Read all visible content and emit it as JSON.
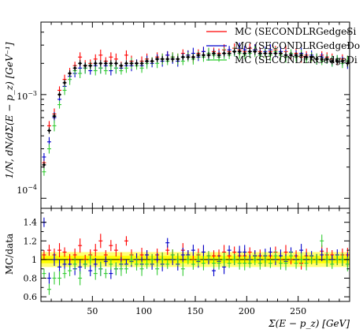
{
  "chart_data": {
    "type": "scatter",
    "main": {
      "ylabel": "1/N, dN/dΣ(E − p_z) [GeV⁻¹]",
      "y_scale": "log",
      "ylim": [
        8e-05,
        0.005
      ],
      "xlim": [
        0,
        300
      ],
      "ytick_labels": [
        {
          "value": 0.0001,
          "label": "10⁻⁴"
        },
        {
          "value": 0.001,
          "label": "10⁻³"
        }
      ],
      "legend_placement": "top-right",
      "series": [
        {
          "name": "MC (SECONDLRGedgeSi",
          "color": "#ff0000",
          "x": [
            3,
            8,
            13,
            18,
            23,
            28,
            33,
            38,
            43,
            48,
            53,
            58,
            63,
            68,
            73,
            78,
            83,
            88,
            93,
            98,
            103,
            108,
            113,
            118,
            123,
            128,
            133,
            138,
            143,
            148,
            153,
            158,
            163,
            168,
            173,
            178,
            183,
            188,
            193,
            198,
            203,
            208,
            213,
            218,
            223,
            228,
            233,
            238,
            243,
            248,
            253,
            258,
            263,
            268,
            273,
            278,
            283,
            288,
            293,
            298
          ],
          "values": [
            0.00022,
            0.0005,
            0.00065,
            0.0011,
            0.0014,
            0.0016,
            0.0019,
            0.0023,
            0.0019,
            0.002,
            0.0022,
            0.0024,
            0.0021,
            0.0023,
            0.0022,
            0.0019,
            0.0024,
            0.0021,
            0.002,
            0.0021,
            0.0022,
            0.0021,
            0.0023,
            0.0022,
            0.0024,
            0.0023,
            0.0022,
            0.0025,
            0.0024,
            0.0023,
            0.0025,
            0.0026,
            0.0025,
            0.0026,
            0.0025,
            0.0027,
            0.0026,
            0.0028,
            0.0027,
            0.0026,
            0.0028,
            0.0027,
            0.0026,
            0.0025,
            0.0026,
            0.0027,
            0.0025,
            0.0026,
            0.0024,
            0.0025,
            0.0023,
            0.0024,
            0.0023,
            0.0022,
            0.0024,
            0.0023,
            0.0022,
            0.0021,
            0.0022,
            0.0021
          ]
        },
        {
          "name": "MC (SECONDLRGedgeDo",
          "color": "#0000cc",
          "x": [
            3,
            8,
            13,
            18,
            23,
            28,
            33,
            38,
            43,
            48,
            53,
            58,
            63,
            68,
            73,
            78,
            83,
            88,
            93,
            98,
            103,
            108,
            113,
            118,
            123,
            128,
            133,
            138,
            143,
            148,
            153,
            158,
            163,
            168,
            173,
            178,
            183,
            188,
            193,
            198,
            203,
            208,
            213,
            218,
            223,
            228,
            233,
            238,
            243,
            248,
            253,
            258,
            263,
            268,
            273,
            278,
            283,
            288,
            293,
            298
          ],
          "values": [
            0.00025,
            0.00035,
            0.0006,
            0.0009,
            0.0012,
            0.0015,
            0.0016,
            0.0018,
            0.0018,
            0.0017,
            0.0019,
            0.0018,
            0.0019,
            0.0017,
            0.0018,
            0.0018,
            0.0019,
            0.0019,
            0.002,
            0.0019,
            0.0021,
            0.002,
            0.0022,
            0.0021,
            0.0024,
            0.0022,
            0.0021,
            0.0023,
            0.0024,
            0.0025,
            0.0023,
            0.0026,
            0.0024,
            0.0025,
            0.0024,
            0.0025,
            0.0027,
            0.0026,
            0.0028,
            0.0027,
            0.0026,
            0.0027,
            0.0025,
            0.0026,
            0.0027,
            0.0025,
            0.0026,
            0.0024,
            0.0025,
            0.0024,
            0.0025,
            0.0023,
            0.0024,
            0.0022,
            0.0023,
            0.0022,
            0.0021,
            0.0022,
            0.0021,
            0.002
          ]
        },
        {
          "name": "MC (SECONDLRGedgeDi",
          "color": "#33cc33",
          "x": [
            3,
            8,
            13,
            18,
            23,
            28,
            33,
            38,
            43,
            48,
            53,
            58,
            63,
            68,
            73,
            78,
            83,
            88,
            93,
            98,
            103,
            108,
            113,
            118,
            123,
            128,
            133,
            138,
            143,
            148,
            153,
            158,
            163,
            168,
            173,
            178,
            183,
            188,
            193,
            198,
            203,
            208,
            213,
            218,
            223,
            228,
            233,
            238,
            243,
            248,
            253,
            258,
            263,
            268,
            273,
            278,
            283,
            288,
            293,
            298
          ],
          "values": [
            0.00018,
            0.0003,
            0.0005,
            0.0008,
            0.0011,
            0.0014,
            0.0017,
            0.0016,
            0.0018,
            0.0019,
            0.0017,
            0.0018,
            0.0017,
            0.0019,
            0.0018,
            0.0017,
            0.0018,
            0.002,
            0.0019,
            0.0018,
            0.002,
            0.0021,
            0.002,
            0.0022,
            0.0021,
            0.0023,
            0.0022,
            0.0021,
            0.0023,
            0.0022,
            0.0024,
            0.0023,
            0.0025,
            0.0024,
            0.0023,
            0.0025,
            0.0024,
            0.0026,
            0.0025,
            0.0024,
            0.0025,
            0.0026,
            0.0024,
            0.0025,
            0.0024,
            0.0026,
            0.0024,
            0.0023,
            0.0025,
            0.0023,
            0.0024,
            0.0022,
            0.0023,
            0.0022,
            0.0021,
            0.0022,
            0.0021,
            0.0022,
            0.002,
            0.0021
          ]
        },
        {
          "name": "",
          "color": "#000000",
          "x": [
            3,
            8,
            13,
            18,
            23,
            28,
            33,
            38,
            43,
            48,
            53,
            58,
            63,
            68,
            73,
            78,
            83,
            88,
            93,
            98,
            103,
            108,
            113,
            118,
            123,
            128,
            133,
            138,
            143,
            148,
            153,
            158,
            163,
            168,
            173,
            178,
            183,
            188,
            193,
            198,
            203,
            208,
            213,
            218,
            223,
            228,
            233,
            238,
            243,
            248,
            253,
            258,
            263,
            268,
            273,
            278,
            283,
            288,
            293,
            298
          ],
          "values": [
            0.00021,
            0.00045,
            0.00062,
            0.001,
            0.0013,
            0.0016,
            0.0018,
            0.002,
            0.0019,
            0.0019,
            0.002,
            0.002,
            0.002,
            0.002,
            0.002,
            0.0019,
            0.002,
            0.002,
            0.002,
            0.002,
            0.0021,
            0.0021,
            0.0022,
            0.0022,
            0.0022,
            0.0022,
            0.0022,
            0.0023,
            0.0023,
            0.0023,
            0.0024,
            0.0024,
            0.0024,
            0.0025,
            0.0024,
            0.0025,
            0.0025,
            0.0026,
            0.0026,
            0.0025,
            0.0026,
            0.0026,
            0.0025,
            0.0025,
            0.0025,
            0.0025,
            0.0025,
            0.0024,
            0.0024,
            0.0024,
            0.0024,
            0.0023,
            0.0023,
            0.0022,
            0.0022,
            0.0022,
            0.0021,
            0.0021,
            0.0021,
            0.002
          ]
        }
      ]
    },
    "ratio": {
      "ylabel": "MC/data",
      "ylim": [
        0.55,
        1.55
      ],
      "yticks": [
        0.6,
        0.8,
        1,
        1.2,
        1.4
      ],
      "ytick_labels": [
        "0.6",
        "0.8",
        "1",
        "1.2",
        "1.4"
      ],
      "band_outer": [
        0.92,
        1.08
      ],
      "band_inner": [
        0.96,
        1.04
      ],
      "band_color": "#ffff00",
      "xticks": [
        50,
        100,
        150,
        200,
        250
      ],
      "xtick_labels": [
        "50",
        "100",
        "150",
        "200",
        "250"
      ],
      "xlabel": "Σ(E − p_z) [GeV]",
      "series": [
        {
          "name": "MC (SECONDLRGedgeSi",
          "color": "#ff0000",
          "x": [
            3,
            8,
            13,
            18,
            23,
            28,
            33,
            38,
            43,
            48,
            53,
            58,
            63,
            68,
            73,
            78,
            83,
            88,
            93,
            98,
            103,
            108,
            113,
            118,
            123,
            128,
            133,
            138,
            143,
            148,
            153,
            158,
            163,
            168,
            173,
            178,
            183,
            188,
            193,
            198,
            203,
            208,
            213,
            218,
            223,
            228,
            233,
            238,
            243,
            248,
            253,
            258,
            263,
            268,
            273,
            278,
            283,
            288,
            293,
            298
          ],
          "values": [
            1.05,
            1.1,
            1.05,
            1.1,
            1.08,
            1.0,
            1.05,
            1.15,
            1.0,
            1.05,
            1.1,
            1.2,
            1.05,
            1.15,
            1.1,
            1.0,
            1.2,
            1.05,
            1.0,
            1.05,
            1.05,
            1.0,
            1.05,
            1.0,
            1.1,
            1.05,
            1.0,
            1.1,
            1.05,
            1.0,
            1.05,
            1.08,
            1.04,
            1.04,
            1.04,
            1.08,
            1.04,
            1.08,
            1.04,
            1.04,
            1.08,
            1.04,
            1.04,
            1.0,
            1.04,
            1.08,
            1.0,
            1.08,
            1.0,
            1.04,
            0.96,
            1.04,
            1.0,
            1.0,
            1.09,
            1.05,
            1.05,
            1.0,
            1.05,
            1.05
          ]
        },
        {
          "name": "MC (SECONDLRGedgeDo",
          "color": "#0000cc",
          "x": [
            3,
            8,
            13,
            18,
            23,
            28,
            33,
            38,
            43,
            48,
            53,
            58,
            63,
            68,
            73,
            78,
            83,
            88,
            93,
            98,
            103,
            108,
            113,
            118,
            123,
            128,
            133,
            138,
            143,
            148,
            153,
            158,
            163,
            168,
            173,
            178,
            183,
            188,
            193,
            198,
            203,
            208,
            213,
            218,
            223,
            228,
            233,
            238,
            243,
            248,
            253,
            258,
            263,
            268,
            273,
            278,
            283,
            288,
            293,
            298
          ],
          "values": [
            1.4,
            0.8,
            1.0,
            0.92,
            0.95,
            0.95,
            0.9,
            0.92,
            0.95,
            0.88,
            0.95,
            0.9,
            0.98,
            0.85,
            0.9,
            0.95,
            0.95,
            0.98,
            1.0,
            0.95,
            1.05,
            0.95,
            1.0,
            0.95,
            1.18,
            1.0,
            0.95,
            1.05,
            1.05,
            1.1,
            0.98,
            1.08,
            1.0,
            0.88,
            0.98,
            0.92,
            1.1,
            1.0,
            1.08,
            1.08,
            1.0,
            1.04,
            1.0,
            1.04,
            1.08,
            1.0,
            1.04,
            0.98,
            1.08,
            1.0,
            1.1,
            1.0,
            1.04,
            1.0,
            1.05,
            1.0,
            1.0,
            1.05,
            1.0,
            1.0
          ]
        },
        {
          "name": "MC (SECONDLRGedgeDi",
          "color": "#33cc33",
          "x": [
            3,
            8,
            13,
            18,
            23,
            28,
            33,
            38,
            43,
            48,
            53,
            58,
            63,
            68,
            73,
            78,
            83,
            88,
            93,
            98,
            103,
            108,
            113,
            118,
            123,
            128,
            133,
            138,
            143,
            148,
            153,
            158,
            163,
            168,
            173,
            178,
            183,
            188,
            193,
            198,
            203,
            208,
            213,
            218,
            223,
            228,
            233,
            238,
            243,
            248,
            253,
            258,
            263,
            268,
            273,
            278,
            283,
            288,
            293,
            298
          ],
          "values": [
            0.85,
            0.68,
            0.8,
            0.8,
            0.85,
            0.88,
            0.95,
            0.8,
            0.95,
            1.0,
            0.85,
            0.9,
            0.85,
            0.95,
            0.9,
            0.9,
            0.9,
            1.0,
            0.95,
            0.9,
            0.95,
            1.0,
            0.9,
            1.0,
            0.95,
            1.05,
            1.0,
            0.9,
            1.0,
            0.95,
            1.0,
            0.96,
            1.04,
            0.96,
            0.96,
            1.0,
            0.96,
            1.0,
            0.96,
            0.96,
            0.96,
            1.0,
            0.96,
            1.0,
            0.96,
            1.04,
            0.96,
            0.96,
            1.04,
            0.96,
            1.0,
            0.96,
            1.0,
            1.0,
            1.2,
            1.0,
            0.95,
            1.0,
            1.0,
            0.95
          ]
        }
      ]
    }
  }
}
